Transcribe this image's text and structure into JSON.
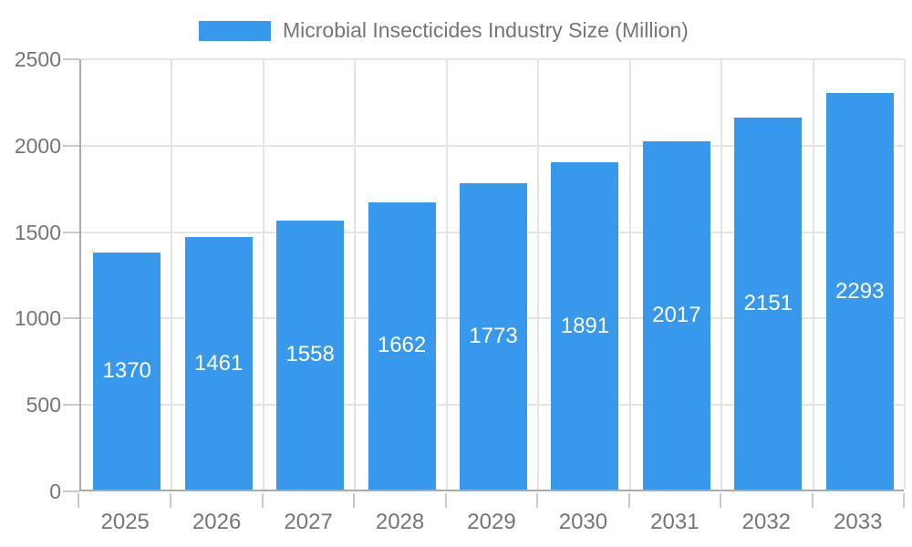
{
  "legend": {
    "label": "Microbial Insecticides Industry Size (Million)"
  },
  "chart_data": {
    "type": "bar",
    "title": "Microbial Insecticides Industry Size (Million)",
    "categories": [
      "2025",
      "2026",
      "2027",
      "2028",
      "2029",
      "2030",
      "2031",
      "2032",
      "2033"
    ],
    "values": [
      1370,
      1461,
      1558,
      1662,
      1773,
      1891,
      2017,
      2151,
      2293
    ],
    "xlabel": "",
    "ylabel": "",
    "ylim": [
      0,
      2500
    ],
    "yticks": [
      0,
      500,
      1000,
      1500,
      2000,
      2500
    ],
    "grid": true,
    "legend_position": "top",
    "value_labels": "inside-center",
    "colors": {
      "bar": "#3898ec",
      "value_label": "#ffffff",
      "grid": "#e4e4e4",
      "axis": "#ababab",
      "tick": "#c9c9c9",
      "tick_label": "#757575"
    }
  }
}
